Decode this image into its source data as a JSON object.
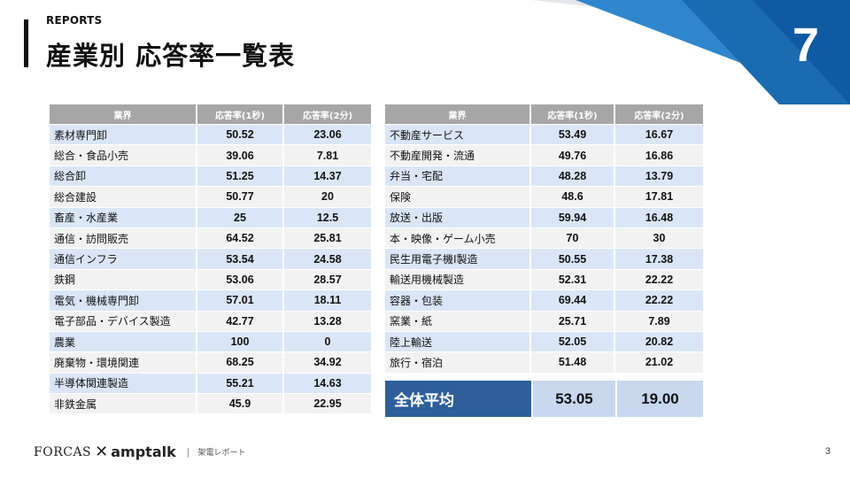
{
  "header": {
    "section_label": "REPORTS",
    "title": "産業別 応答率一覧表",
    "page_number": "7"
  },
  "left_table": {
    "columns": [
      "業界",
      "応答率(1秒)",
      "応答率(2分)"
    ],
    "rows": [
      [
        "素材専門卸",
        "50.52",
        "23.06"
      ],
      [
        "総合・食品小売",
        "39.06",
        "7.81"
      ],
      [
        "総合卸",
        "51.25",
        "14.37"
      ],
      [
        "総合建設",
        "50.77",
        "20"
      ],
      [
        "畜産・水産業",
        "25",
        "12.5"
      ],
      [
        "通信・訪問販売",
        "64.52",
        "25.81"
      ],
      [
        "通信インフラ",
        "53.54",
        "24.58"
      ],
      [
        "鉄鋼",
        "53.06",
        "28.57"
      ],
      [
        "電気・機械専門卸",
        "57.01",
        "18.11"
      ],
      [
        "電子部品・デバイス製造",
        "42.77",
        "13.28"
      ],
      [
        "農業",
        "100",
        "0"
      ],
      [
        "廃棄物・環境関連",
        "68.25",
        "34.92"
      ],
      [
        "半導体関連製造",
        "55.21",
        "14.63"
      ],
      [
        "非鉄金属",
        "45.9",
        "22.95"
      ]
    ]
  },
  "right_table": {
    "columns": [
      "業界",
      "応答率(1秒)",
      "応答率(2分)"
    ],
    "rows": [
      [
        "不動産サービス",
        "53.49",
        "16.67"
      ],
      [
        "不動産開発・流通",
        "49.76",
        "16.86"
      ],
      [
        "弁当・宅配",
        "48.28",
        "13.79"
      ],
      [
        "保険",
        "48.6",
        "17.81"
      ],
      [
        "放送・出版",
        "59.94",
        "16.48"
      ],
      [
        "本・映像・ゲーム小売",
        "70",
        "30"
      ],
      [
        "民生用電子機I製造",
        "50.55",
        "17.38"
      ],
      [
        "輸送用機械製造",
        "52.31",
        "22.22"
      ],
      [
        "容器・包装",
        "69.44",
        "22.22"
      ],
      [
        "窯業・紙",
        "25.71",
        "7.89"
      ],
      [
        "陸上輸送",
        "52.05",
        "20.82"
      ],
      [
        "旅行・宿泊",
        "51.48",
        "21.02"
      ]
    ]
  },
  "average": {
    "label": "全体平均",
    "value_1s": "53.05",
    "value_2m": "19.00"
  },
  "footer": {
    "brand_1": "FORCAS",
    "brand_x": "✕",
    "brand_2": "amptalk",
    "separator": "|",
    "doc_name": "架電レポート",
    "slide_number": "3"
  },
  "colors": {
    "header_gray": "#a6a6a6",
    "row_blue": "#dae6f7",
    "row_gray": "#f2f2f2",
    "avg_dark_blue": "#2e5f9a",
    "avg_light_blue": "#c6d7ee",
    "corner_blue": "#2a80c8"
  }
}
